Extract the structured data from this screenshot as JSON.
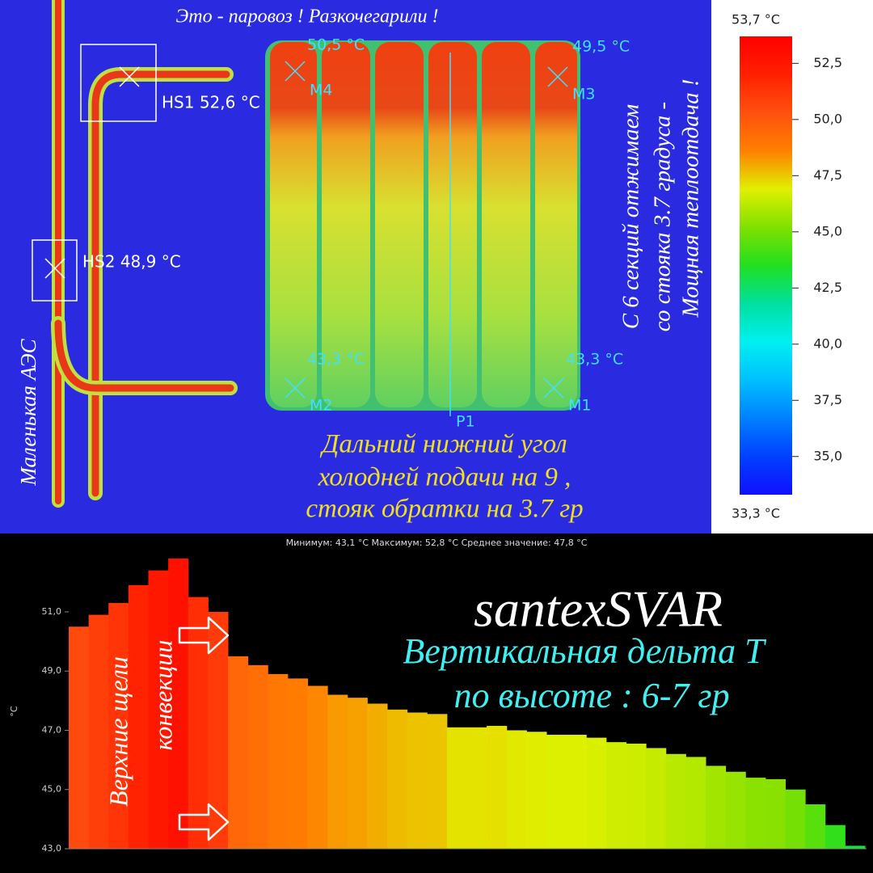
{
  "thermal_image": {
    "caption": "Это - паровоз ! Разкочегарили !",
    "hot_spot_labels": [
      "HS1 52,6 °C",
      "HS2 48,9 °C"
    ],
    "markers": [
      {
        "temp": "50,5 °C",
        "label": "M4"
      },
      {
        "temp": "49,5 °C",
        "label": "M3"
      },
      {
        "temp": "43,3 °C",
        "label": "M2"
      },
      {
        "temp": "43,3 °C",
        "label": "M1"
      }
    ],
    "profile_line_label": "P1",
    "left_note": "Маленькая  АЭС",
    "right_note": [
      "С 6 секций отжимаем",
      "со стояка 3.7 градуса -",
      "Мощная теплоотдача !"
    ],
    "bottom_note": [
      "Дальний нижний угол",
      "холодней подачи на 9 ,",
      "стояк обратки на 3.7 гр"
    ],
    "colorbar": {
      "lim": [
        {
          "value": 33.3,
          "label": "33,3 °C"
        },
        {
          "value": 53.7,
          "label": "53,7 °C"
        }
      ],
      "ticks": [
        {
          "value": 35,
          "label": "35,0"
        },
        {
          "value": 37.5,
          "label": "37,5"
        },
        {
          "value": 40,
          "label": "40,0"
        },
        {
          "value": 42.5,
          "label": "42,5"
        },
        {
          "value": 45,
          "label": "45,0"
        },
        {
          "value": 47.5,
          "label": "47,5"
        },
        {
          "value": 50,
          "label": "50,0"
        },
        {
          "value": 52.5,
          "label": "52,5"
        }
      ],
      "colors": [
        "#1010ff",
        "#0040ff",
        "#0080ff",
        "#00c0ff",
        "#00f0f0",
        "#00e0a0",
        "#20e020",
        "#80e000",
        "#e0f000",
        "#ff8000",
        "#ff5010",
        "#ff2000",
        "#ff0000"
      ]
    }
  },
  "chart_data": {
    "type": "bar",
    "subtitle": "Минимум: 43,1 °C Максимум: 52,8 °C Среднее значение: 47,8 °C",
    "ylabel": "°C",
    "values": [
      50.5,
      50.9,
      51.3,
      51.9,
      52.4,
      52.8,
      51.5,
      51.0,
      49.5,
      49.2,
      48.9,
      48.75,
      48.5,
      48.2,
      48.1,
      47.9,
      47.7,
      47.6,
      47.55,
      47.1,
      47.1,
      47.15,
      47.0,
      46.95,
      46.85,
      46.85,
      46.75,
      46.6,
      46.55,
      46.4,
      46.2,
      46.1,
      45.8,
      45.6,
      45.4,
      45.35,
      45.0,
      44.5,
      43.8,
      43.1
    ],
    "ylim": [
      43,
      53.1
    ],
    "yticks": [
      {
        "value": 43,
        "label": "43,0"
      },
      {
        "value": 45,
        "label": "45,0"
      },
      {
        "value": 47,
        "label": "47,0"
      },
      {
        "value": 49,
        "label": "49,0"
      },
      {
        "value": 51,
        "label": "51,0"
      }
    ],
    "grid": false,
    "annotations": [
      "santexSVAR",
      "Вертикальная дельта Т",
      "по  высоте : 6-7 гр",
      "Верхние щели",
      "конвекции"
    ]
  }
}
